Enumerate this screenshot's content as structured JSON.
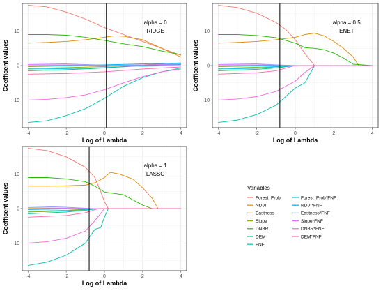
{
  "chart_data": [
    {
      "type": "line",
      "annotation": [
        "alpha = 0",
        "RIDGE"
      ],
      "xlabel": "Log of Lambda",
      "ylabel": "Coefficent values",
      "xlim": [
        -4.3,
        4.3
      ],
      "ylim": [
        -18,
        18
      ],
      "xticks": [
        -4,
        -2,
        0,
        2,
        4
      ],
      "yticks": [
        -10,
        0,
        10
      ],
      "vline": 0.1,
      "grid": true,
      "series": [
        {
          "ref": "Forest_Prob",
          "x": [
            -4,
            -3,
            -2,
            -1,
            0,
            1,
            2,
            3,
            4
          ],
          "y": [
            17.5,
            17,
            15.5,
            13.5,
            11,
            9,
            7,
            5,
            3
          ]
        },
        {
          "ref": "NDVI",
          "x": [
            -4,
            -3,
            -2,
            -1,
            0,
            0.5,
            1,
            2,
            3,
            4
          ],
          "y": [
            6.5,
            6.7,
            7,
            7.5,
            8.2,
            8.6,
            8.5,
            7.5,
            5,
            2.5
          ]
        },
        {
          "ref": "Eastness",
          "x": [
            -4,
            -2,
            0,
            2,
            4
          ],
          "y": [
            0,
            0,
            0,
            0.1,
            0.3
          ]
        },
        {
          "ref": "Slope",
          "x": [
            -4,
            -2,
            0,
            2,
            4
          ],
          "y": [
            -0.8,
            -0.6,
            -0.3,
            0.2,
            0.8
          ]
        },
        {
          "ref": "DNBR",
          "x": [
            -4,
            -3,
            -2,
            -1,
            0,
            1,
            2,
            3,
            4
          ],
          "y": [
            9,
            9,
            8.8,
            8.2,
            7.3,
            6.3,
            5.5,
            4.2,
            3.2
          ]
        },
        {
          "ref": "DEM",
          "x": [
            -4,
            -2,
            0,
            2,
            4
          ],
          "y": [
            -1.5,
            -1.2,
            -0.7,
            0,
            0.5
          ]
        },
        {
          "ref": "FNF",
          "x": [
            -4,
            -3,
            -2,
            -1,
            0,
            1,
            2,
            3,
            4
          ],
          "y": [
            -16.5,
            -16,
            -14.5,
            -12.5,
            -9.5,
            -6,
            -3.5,
            -1.8,
            -0.7
          ]
        },
        {
          "ref": "Forest_Prob*FNF",
          "x": [
            -4,
            -2,
            0,
            2,
            4
          ],
          "y": [
            -1,
            -0.9,
            -0.6,
            0,
            0.3
          ]
        },
        {
          "ref": "NDVI*FNF",
          "x": [
            -4,
            -2,
            0,
            2,
            4
          ],
          "y": [
            -0.3,
            -0.1,
            0.2,
            0.5,
            0.7
          ]
        },
        {
          "ref": "Eastness*FNF",
          "x": [
            -4,
            -2,
            0,
            2,
            4
          ],
          "y": [
            0.7,
            0.5,
            0.1,
            -0.2,
            0
          ]
        },
        {
          "ref": "Slope*FNF",
          "x": [
            -4,
            -2,
            0,
            2,
            4
          ],
          "y": [
            0.3,
            0.2,
            0,
            0.2,
            0.4
          ]
        },
        {
          "ref": "DNBR*FNF",
          "x": [
            -4,
            -3,
            -2,
            -1,
            0,
            1,
            2,
            3,
            4
          ],
          "y": [
            -10,
            -9.8,
            -9.3,
            -8.5,
            -7,
            -5,
            -3.2,
            -1.8,
            -1
          ]
        },
        {
          "ref": "DEM*FNF",
          "x": [
            -4,
            -2,
            0,
            2,
            4
          ],
          "y": [
            -2.5,
            -2.3,
            -1.8,
            -1,
            -0.4
          ]
        }
      ]
    },
    {
      "type": "line",
      "annotation": [
        "alpha = 0.5",
        "ENET"
      ],
      "xlabel": "Log of Lambda",
      "ylabel": "Coefficent values",
      "xlim": [
        -4.3,
        4.3
      ],
      "ylim": [
        -18,
        18
      ],
      "xticks": [
        -4,
        -2,
        0,
        2,
        4
      ],
      "yticks": [
        -10,
        0,
        10
      ],
      "vline": -0.8,
      "grid": true,
      "series": [
        {
          "ref": "Forest_Prob",
          "x": [
            -4,
            -3,
            -2,
            -1,
            -0.5,
            0,
            0.5,
            1,
            1.5,
            4
          ],
          "y": [
            17.5,
            16.8,
            15.2,
            12.5,
            10.5,
            7.5,
            3.5,
            0,
            0,
            0
          ]
        },
        {
          "ref": "NDVI",
          "x": [
            -4,
            -3,
            -2,
            -1,
            0,
            0.5,
            1,
            1.5,
            2,
            2.5,
            3,
            3.3,
            4
          ],
          "y": [
            6.5,
            6.7,
            7,
            7.5,
            8.2,
            9,
            9.4,
            8.6,
            7,
            5,
            2.5,
            0,
            0
          ]
        },
        {
          "ref": "Eastness",
          "x": [
            -4,
            -2,
            0,
            4
          ],
          "y": [
            0,
            0,
            0,
            0
          ]
        },
        {
          "ref": "Slope",
          "x": [
            -4,
            -2,
            -1,
            0,
            4
          ],
          "y": [
            -0.8,
            -0.5,
            -0.3,
            0,
            0
          ]
        },
        {
          "ref": "DNBR",
          "x": [
            -4,
            -3,
            -2,
            -1,
            0,
            0.5,
            1,
            1.5,
            2,
            2.5,
            3,
            4
          ],
          "y": [
            9,
            9,
            8.7,
            8.1,
            6.5,
            5.2,
            5,
            4.6,
            3.6,
            2.2,
            0.4,
            0
          ]
        },
        {
          "ref": "DEM",
          "x": [
            -4,
            -2,
            -1,
            0,
            4
          ],
          "y": [
            -1.5,
            -1.1,
            -0.7,
            0,
            0
          ]
        },
        {
          "ref": "FNF",
          "x": [
            -4,
            -3,
            -2,
            -1,
            0,
            0.5,
            1,
            4
          ],
          "y": [
            -16.5,
            -15.8,
            -14.2,
            -11.5,
            -6.5,
            -5,
            0,
            0
          ]
        },
        {
          "ref": "Forest_Prob*FNF",
          "x": [
            -4,
            -2,
            -1,
            0,
            4
          ],
          "y": [
            -1,
            -0.8,
            -0.4,
            0,
            0
          ]
        },
        {
          "ref": "NDVI*FNF",
          "x": [
            -4,
            -2,
            0,
            4
          ],
          "y": [
            -0.3,
            -0.1,
            0,
            0
          ]
        },
        {
          "ref": "Eastness*FNF",
          "x": [
            -4,
            -2,
            -1,
            0,
            4
          ],
          "y": [
            0.7,
            0.5,
            0.2,
            0,
            0
          ]
        },
        {
          "ref": "Slope*FNF",
          "x": [
            -4,
            -2,
            0,
            4
          ],
          "y": [
            0.3,
            0.2,
            0,
            0
          ]
        },
        {
          "ref": "DNBR*FNF",
          "x": [
            -4,
            -3,
            -2,
            -1,
            0,
            0.5,
            1,
            4
          ],
          "y": [
            -10,
            -9.7,
            -9,
            -7.5,
            -4.5,
            -2,
            0,
            0
          ]
        },
        {
          "ref": "DEM*FNF",
          "x": [
            -4,
            -2,
            -1,
            0,
            4
          ],
          "y": [
            -2.5,
            -2.1,
            -1.5,
            0,
            0
          ]
        }
      ]
    },
    {
      "type": "line",
      "annotation": [
        "alpha = 1",
        "LASSO"
      ],
      "xlabel": "Log of Lambda",
      "ylabel": "Coefficent values",
      "xlim": [
        -4.3,
        4.3
      ],
      "ylim": [
        -18,
        18
      ],
      "xticks": [
        -4,
        -2,
        0,
        2,
        4
      ],
      "yticks": [
        -10,
        0,
        10
      ],
      "vline": -0.8,
      "grid": true,
      "series": [
        {
          "ref": "Forest_Prob",
          "x": [
            -4,
            -3,
            -2,
            -1,
            -0.5,
            -0.2,
            0,
            0.2,
            4
          ],
          "y": [
            17.5,
            16.8,
            15,
            12,
            9,
            5,
            2,
            0,
            0
          ]
        },
        {
          "ref": "NDVI",
          "x": [
            -4,
            -3,
            -2,
            -1,
            -0.5,
            0,
            0.3,
            0.8,
            1.5,
            2,
            2.5,
            2.8,
            4
          ],
          "y": [
            6.5,
            6.5,
            6.6,
            6.8,
            7.5,
            9,
            10.5,
            10,
            8.5,
            6,
            3,
            0,
            0
          ]
        },
        {
          "ref": "Eastness",
          "x": [
            -4,
            -2,
            0,
            4
          ],
          "y": [
            0,
            0,
            0,
            0
          ]
        },
        {
          "ref": "Slope",
          "x": [
            -4,
            -2,
            -1,
            -0.5,
            4
          ],
          "y": [
            -0.8,
            -0.5,
            -0.2,
            0,
            0
          ]
        },
        {
          "ref": "DNBR",
          "x": [
            -4,
            -3,
            -2,
            -1,
            -0.5,
            0,
            1,
            1.5,
            2,
            2.5,
            4
          ],
          "y": [
            9,
            9,
            8.6,
            7.8,
            6.5,
            4.8,
            4,
            2.5,
            1,
            0,
            0
          ]
        },
        {
          "ref": "DEM",
          "x": [
            -4,
            -2,
            -1,
            -0.3,
            4
          ],
          "y": [
            -1.5,
            -1,
            -0.5,
            0,
            0
          ]
        },
        {
          "ref": "FNF",
          "x": [
            -4,
            -3,
            -2,
            -1,
            -0.5,
            -0.2,
            0,
            0.2,
            4
          ],
          "y": [
            -16.5,
            -15.5,
            -13.5,
            -10,
            -6,
            -5.5,
            -2.5,
            0,
            0
          ]
        },
        {
          "ref": "Forest_Prob*FNF",
          "x": [
            -4,
            -2,
            -1,
            -0.3,
            4
          ],
          "y": [
            -1,
            -0.7,
            -0.3,
            0,
            0
          ]
        },
        {
          "ref": "NDVI*FNF",
          "x": [
            -4,
            -2,
            -1,
            4
          ],
          "y": [
            -0.3,
            -0.1,
            0,
            0
          ]
        },
        {
          "ref": "Eastness*FNF",
          "x": [
            -4,
            -2,
            -1,
            -0.5,
            4
          ],
          "y": [
            0.7,
            0.4,
            0.1,
            0,
            0
          ]
        },
        {
          "ref": "Slope*FNF",
          "x": [
            -4,
            -2,
            -1,
            4
          ],
          "y": [
            0.3,
            0.1,
            0,
            0
          ]
        },
        {
          "ref": "DNBR*FNF",
          "x": [
            -4,
            -3,
            -2,
            -1,
            -0.5,
            0,
            4
          ],
          "y": [
            -10,
            -9.6,
            -8.6,
            -6.5,
            -3.5,
            0,
            0
          ]
        },
        {
          "ref": "DEM*FNF",
          "x": [
            -4,
            -2,
            -1,
            -0.3,
            4
          ],
          "y": [
            -2.5,
            -2,
            -1.2,
            0,
            0
          ]
        }
      ]
    }
  ],
  "legend": {
    "title": "Variables",
    "placement": "bottom-right",
    "items": [
      {
        "label": "Forest_Prob",
        "color": "#F8766D"
      },
      {
        "label": "NDVI",
        "color": "#E18A00"
      },
      {
        "label": "Eastness",
        "color": "#BE9C00"
      },
      {
        "label": "Slope",
        "color": "#8CAB00"
      },
      {
        "label": "DNBR",
        "color": "#24B700"
      },
      {
        "label": "DEM",
        "color": "#00BE70"
      },
      {
        "label": "FNF",
        "color": "#00C1AB"
      },
      {
        "label": "Forest_Prob*FNF",
        "color": "#00BBDA"
      },
      {
        "label": "NDVI*FNF",
        "color": "#00ACFC"
      },
      {
        "label": "Eastness*FNF",
        "color": "#8B93FF"
      },
      {
        "label": "Slope*FNF",
        "color": "#D575FE"
      },
      {
        "label": "DNBR*FNF",
        "color": "#F962DD"
      },
      {
        "label": "DEM*FNF",
        "color": "#FF65AC"
      }
    ]
  }
}
